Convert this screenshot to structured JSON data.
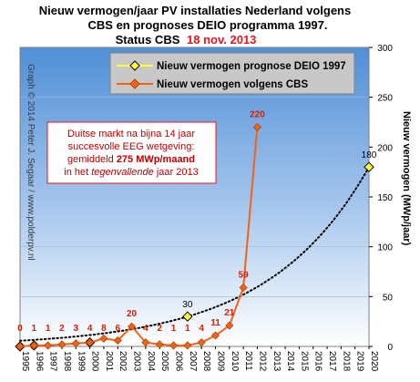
{
  "title": {
    "line1": "Nieuw vermogen/jaar PV installaties Nederland volgens",
    "line2": "CBS en prognoses DEIO programma  1997.",
    "line3_prefix": "Status CBS",
    "line3_date": "18 nov. 2013"
  },
  "watermark": "Graph © 2014 Peter J. Segaar / www.polderpv.nl",
  "annotation": {
    "line1": "Duitse markt na bijna 14 jaar",
    "line2": "succesvolle EEG wetgeving:",
    "line3_prefix": "gemiddeld ",
    "line3_bold": "275 MWp/maand",
    "line4_prefix": "in het ",
    "line4_italic": "tegenvallende",
    "line4_suffix": " jaar 2013"
  },
  "colors": {
    "plot_top": "#4f8fd6",
    "plot_bottom": "#ffffff",
    "cbs_series": "#f06418",
    "prognosis_series": "#000000",
    "prognosis_marker": "#ffff33",
    "title_accent": "#e8141b"
  },
  "chart_data": {
    "type": "line",
    "ylabel": "Nieuw vermogen (MWp/jaar)",
    "ylim": [
      0,
      300
    ],
    "yticks": [
      0,
      50,
      100,
      150,
      200,
      250,
      300
    ],
    "xlim": [
      1995,
      2020
    ],
    "xticks": [
      "1995",
      "1996",
      "1997",
      "1998",
      "1999",
      "2000",
      "2001",
      "2002",
      "2003",
      "2004",
      "2005",
      "2006",
      "2007",
      "2008",
      "2009",
      "2010",
      "2011",
      "2012",
      "2013",
      "2014",
      "2015",
      "2016",
      "2017",
      "2018",
      "2019",
      "2020"
    ],
    "y_axis_position": "right",
    "legend_position": "top-left",
    "series": [
      {
        "name": "Nieuw vermogen prognose DEIO 1997",
        "style": "dotted",
        "marker_points": [
          {
            "x": 1995,
            "y": 0
          },
          {
            "x": 1996,
            "y": 1
          },
          {
            "x": 2000,
            "y": 4
          },
          {
            "x": 2007,
            "y": 30
          },
          {
            "x": 2020,
            "y": 180
          }
        ],
        "labels": [
          {
            "x": 2007,
            "y": 30,
            "text": "30"
          },
          {
            "x": 2020,
            "y": 180,
            "text": "180"
          }
        ]
      },
      {
        "name": "Nieuw vermogen volgens CBS",
        "x": [
          1995,
          1996,
          1997,
          1998,
          1999,
          2000,
          2001,
          2002,
          2003,
          2004,
          2005,
          2006,
          2007,
          2008,
          2009,
          2010,
          2011,
          2012
        ],
        "values": [
          0,
          1,
          1,
          2,
          3,
          4,
          8,
          6,
          20,
          4,
          2,
          1,
          1,
          4,
          11,
          21,
          59,
          220
        ],
        "labels": [
          "0",
          "1",
          "1",
          "2",
          "3",
          "4",
          "8",
          "6",
          "20",
          "4",
          "2",
          "1",
          "1",
          "4",
          "11",
          "21",
          "59",
          "220"
        ]
      }
    ]
  }
}
